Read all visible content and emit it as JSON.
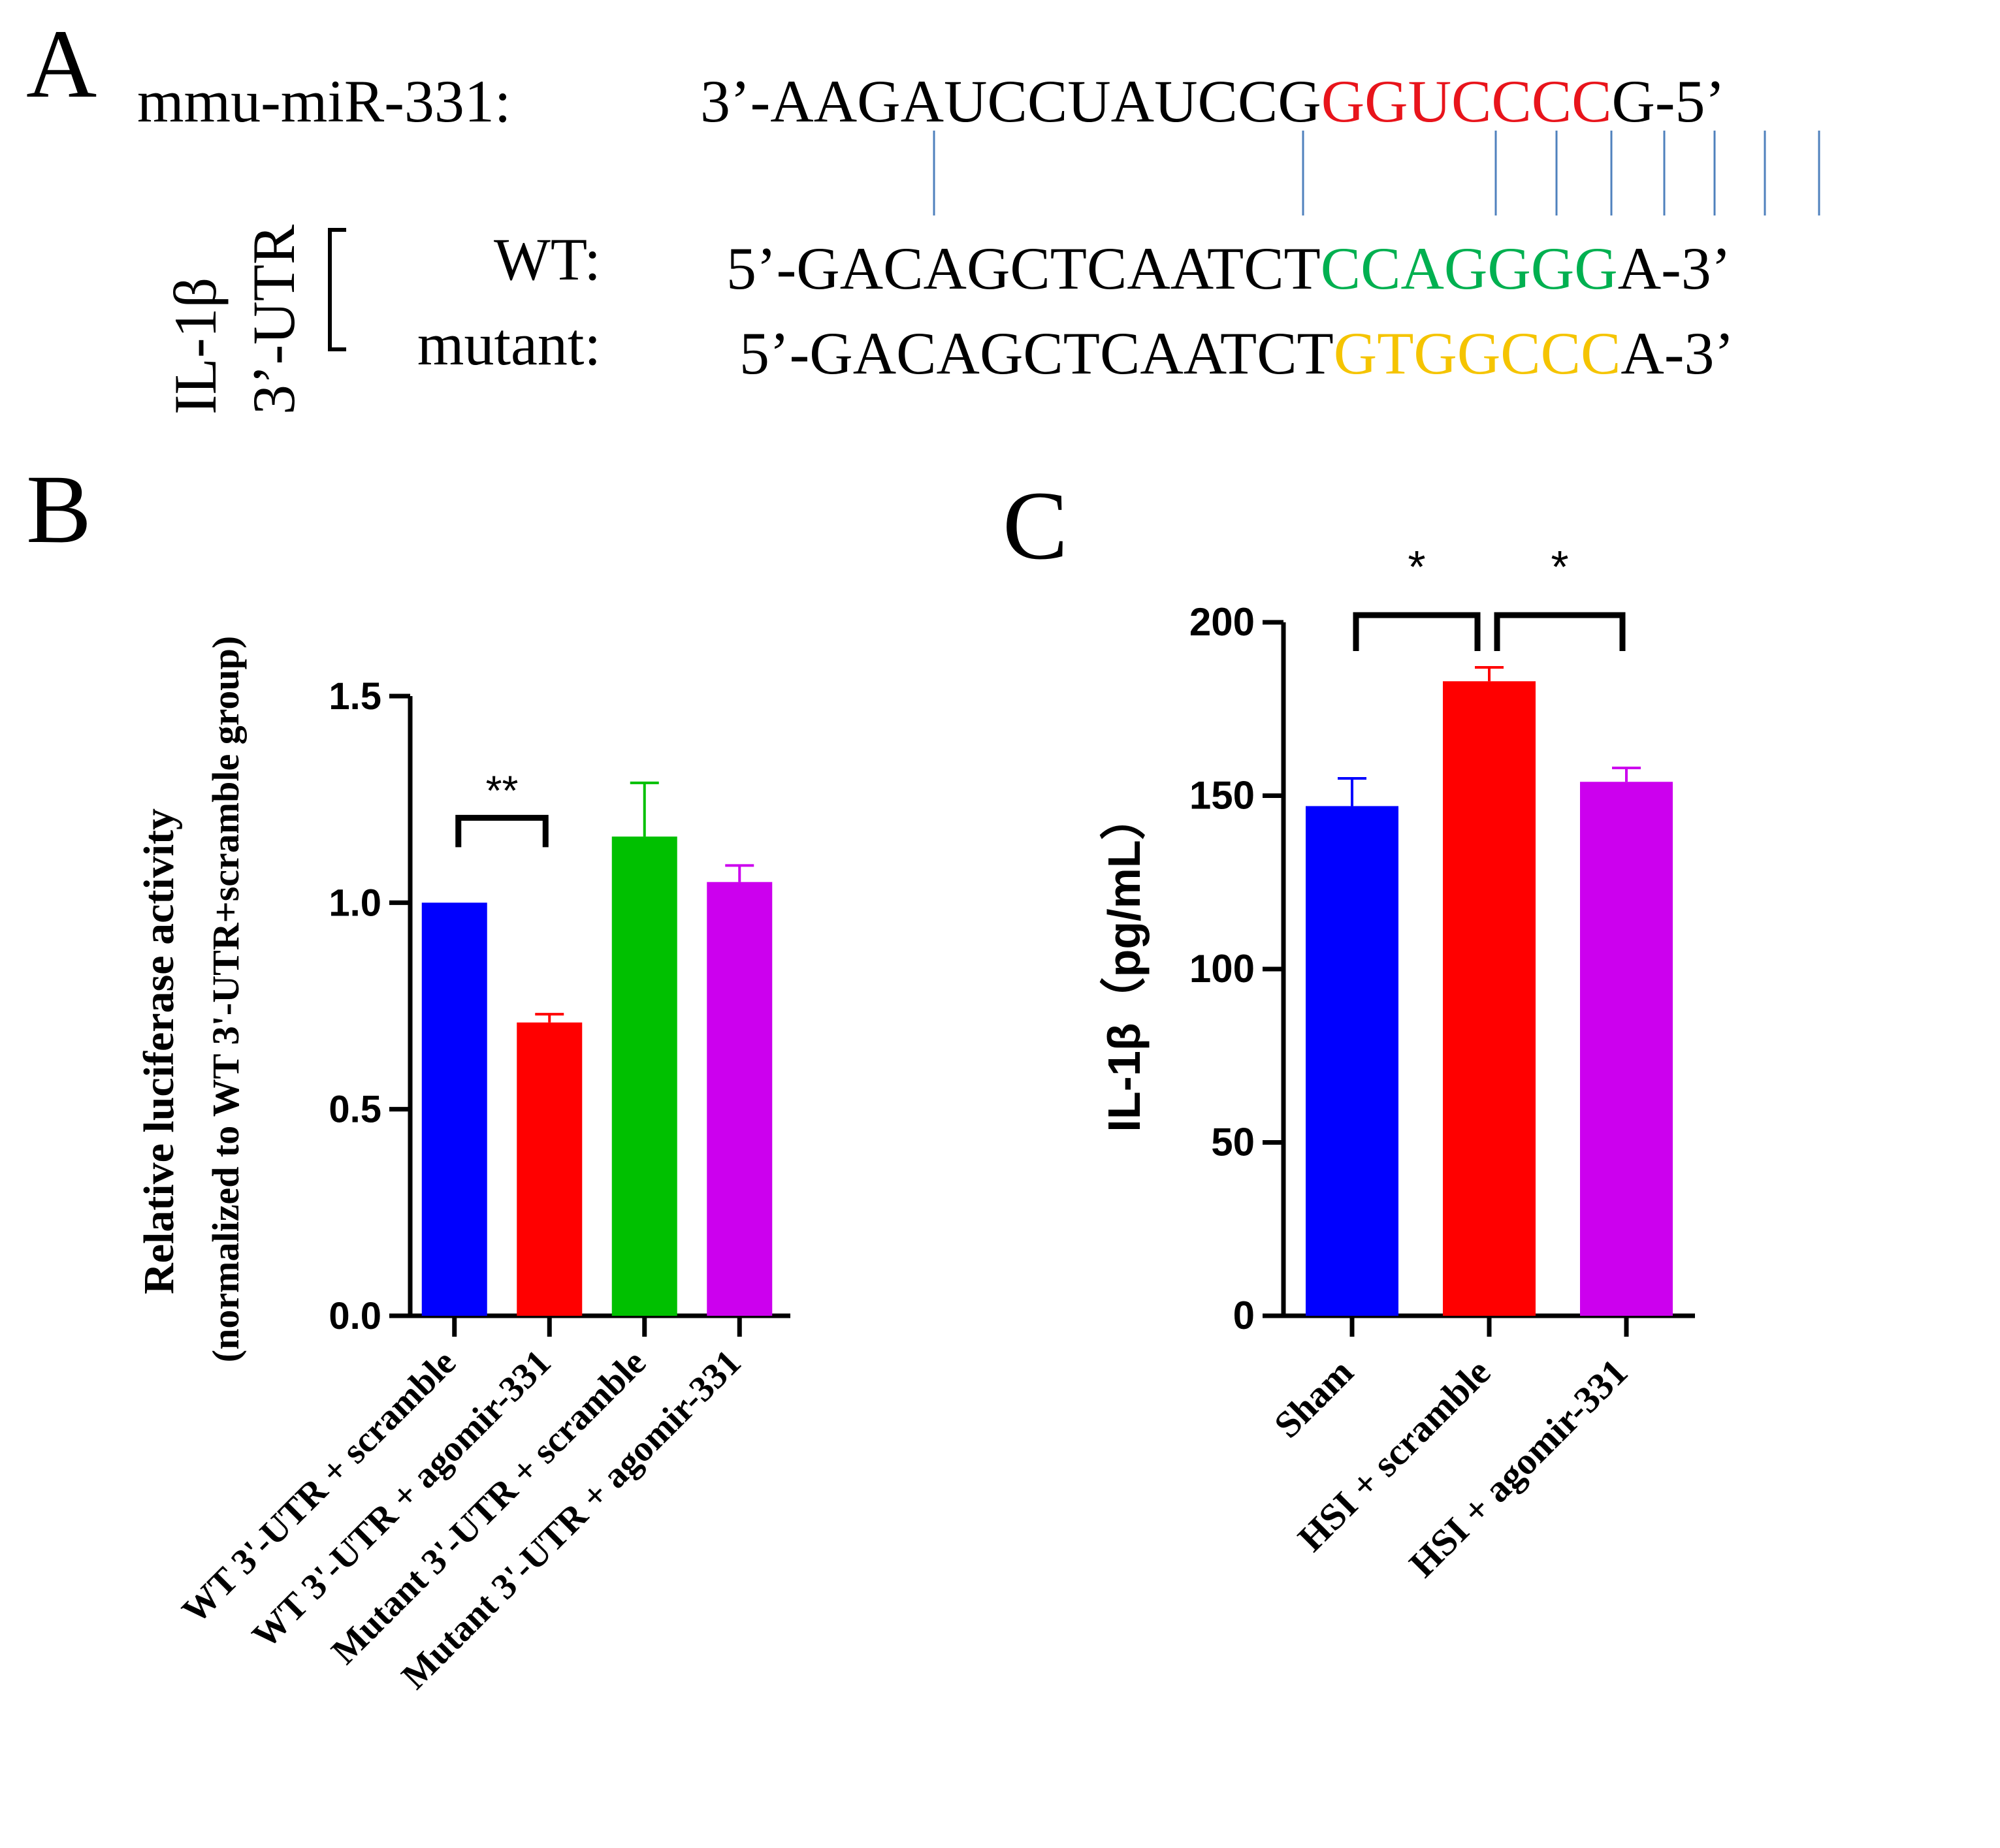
{
  "panel_a": {
    "letter": "A",
    "mirna_label": "mmu-miR-331:",
    "mirna_parts": [
      "3’-AAGAUCCUAUCCG",
      "GGUCCCC",
      "G-5’"
    ],
    "gene_label_1": "IL-1β",
    "gene_label_2": "3’-UTR",
    "wt_label": "WT:",
    "wt_parts": [
      "5’-GACAGCTCAATCT",
      "CCAGGGG",
      "A-3’"
    ],
    "mutant_label": "mutant:",
    "mutant_parts": [
      "5’-GACAGCTCAATCT",
      "GTGGCCC",
      "A-3’"
    ],
    "colors": {
      "seed": "#e8141b",
      "wt_site": "#00b050",
      "mutant_site": "#f5c400",
      "pair_line": "#4f81bd"
    }
  },
  "chart_data": [
    {
      "panel": "B",
      "type": "bar",
      "ylabel": "Relative luciferase activity",
      "ylabel2": "(normalized to WT 3'-UTR+scramble group)",
      "categories": [
        "WT 3'-UTR + scramble",
        "WT 3'-UTR + agomir-331",
        "Mutant 3'-UTR + scramble",
        "Mutant 3'-UTR + agomir-331"
      ],
      "values": [
        1.0,
        0.71,
        1.16,
        1.05
      ],
      "errors": [
        0.0,
        0.02,
        0.13,
        0.04
      ],
      "colors": [
        "#0000ff",
        "#ff0000",
        "#00c000",
        "#cc00ee"
      ],
      "ylim": [
        0,
        1.5
      ],
      "yticks": [
        "0.0",
        "0.5",
        "1.0",
        "1.5"
      ],
      "significance": [
        {
          "from": 0,
          "to": 1,
          "label": "**"
        }
      ]
    },
    {
      "panel": "C",
      "type": "bar",
      "ylabel": "IL-1β（pg/mL）",
      "categories": [
        "Sham",
        "HSI + scramble",
        "HSI + agomir-331"
      ],
      "values": [
        147,
        183,
        154
      ],
      "errors": [
        8,
        4,
        4
      ],
      "colors": [
        "#0000ff",
        "#ff0000",
        "#cc00ee"
      ],
      "ylim": [
        0,
        200
      ],
      "yticks": [
        "0",
        "50",
        "100",
        "150",
        "200"
      ],
      "significance": [
        {
          "from": 0,
          "to": 1,
          "label": "*"
        },
        {
          "from": 1,
          "to": 2,
          "label": "*"
        }
      ]
    }
  ]
}
